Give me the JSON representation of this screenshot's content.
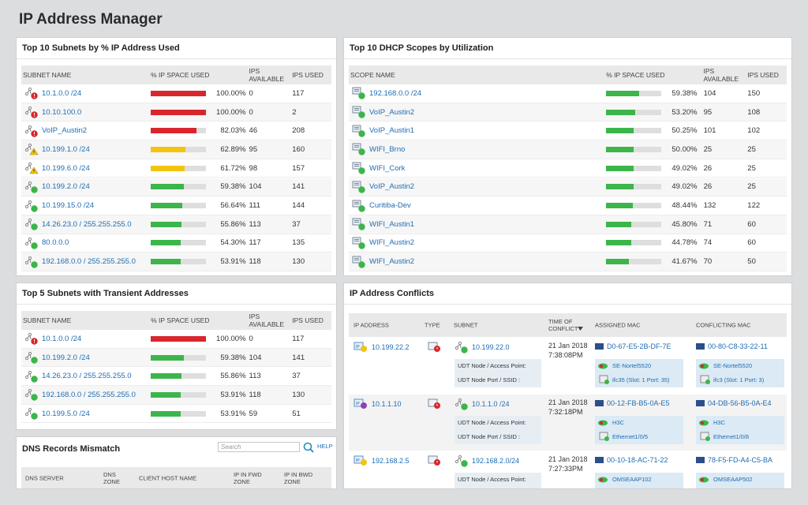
{
  "header": {
    "title": "IP Address Manager"
  },
  "status_colors": {
    "critical": "#d9262c",
    "warning": "#f2c40f",
    "up": "#3cb54a"
  },
  "bar_range": [
    0,
    100
  ],
  "subnets": {
    "title": "Top 10 Subnets by % IP Address Used",
    "columns": [
      "SUBNET NAME",
      "% IP SPACE USED",
      "IPS AVAILABLE",
      "IPS USED"
    ],
    "rows": [
      {
        "name": "10.1.0.0 /24",
        "status": "critical",
        "used_pct": {
          "value": 100,
          "label": "100.00%"
        },
        "available": 0,
        "used": 117
      },
      {
        "name": "10.10.100.0",
        "status": "critical",
        "used_pct": {
          "value": 100,
          "label": "100.00%"
        },
        "available": 0,
        "used": 2
      },
      {
        "name": "VoIP_Austin2",
        "status": "critical",
        "used_pct": {
          "value": 82.03,
          "label": "82.03%"
        },
        "available": 46,
        "used": 208
      },
      {
        "name": "10.199.1.0 /24",
        "status": "warning",
        "used_pct": {
          "value": 62.89,
          "label": "62.89%"
        },
        "available": 95,
        "used": 160
      },
      {
        "name": "10.199.6.0 /24",
        "status": "warning",
        "used_pct": {
          "value": 61.72,
          "label": "61.72%"
        },
        "available": 98,
        "used": 157
      },
      {
        "name": "10.199.2.0 /24",
        "status": "up",
        "used_pct": {
          "value": 59.38,
          "label": "59.38%"
        },
        "available": 104,
        "used": 141
      },
      {
        "name": "10.199.15.0 /24",
        "status": "up",
        "used_pct": {
          "value": 56.64,
          "label": "56.64%"
        },
        "available": 111,
        "used": 144
      },
      {
        "name": "14.26.23.0 / 255.255.255.0",
        "status": "up",
        "used_pct": {
          "value": 55.86,
          "label": "55.86%"
        },
        "available": 113,
        "used": 37
      },
      {
        "name": "80.0.0.0",
        "status": "up",
        "used_pct": {
          "value": 54.3,
          "label": "54.30%"
        },
        "available": 117,
        "used": 135
      },
      {
        "name": "192.168.0.0 / 255.255.255.0",
        "status": "up",
        "used_pct": {
          "value": 53.91,
          "label": "53.91%"
        },
        "available": 118,
        "used": 130
      }
    ]
  },
  "dhcp": {
    "title": "Top 10 DHCP Scopes by Utilization",
    "columns": [
      "SCOPE NAME",
      "% IP SPACE USED",
      "IPS AVAILABLE",
      "IPS USED"
    ],
    "rows": [
      {
        "name": "192.168.0.0 /24",
        "status": "up",
        "used_pct": {
          "value": 59.38,
          "label": "59.38%"
        },
        "available": 104,
        "used": 150
      },
      {
        "name": "VoIP_Austin2",
        "status": "up",
        "used_pct": {
          "value": 53.2,
          "label": "53.20%"
        },
        "available": 95,
        "used": 108
      },
      {
        "name": "VoIP_Austin1",
        "status": "up",
        "used_pct": {
          "value": 50.25,
          "label": "50.25%"
        },
        "available": 101,
        "used": 102
      },
      {
        "name": "WIFI_Brno",
        "status": "up",
        "used_pct": {
          "value": 50,
          "label": "50.00%"
        },
        "available": 25,
        "used": 25
      },
      {
        "name": "WIFI_Cork",
        "status": "up",
        "used_pct": {
          "value": 49.02,
          "label": "49.02%"
        },
        "available": 26,
        "used": 25
      },
      {
        "name": "VoIP_Austin2",
        "status": "up",
        "used_pct": {
          "value": 49.02,
          "label": "49.02%"
        },
        "available": 26,
        "used": 25
      },
      {
        "name": "Curitiba-Dev",
        "status": "up",
        "used_pct": {
          "value": 48.44,
          "label": "48.44%"
        },
        "available": 132,
        "used": 122
      },
      {
        "name": "WIFI_Austin1",
        "status": "up",
        "used_pct": {
          "value": 45.8,
          "label": "45.80%"
        },
        "available": 71,
        "used": 60
      },
      {
        "name": "WIFI_Austin2",
        "status": "up",
        "used_pct": {
          "value": 44.78,
          "label": "44.78%"
        },
        "available": 74,
        "used": 60
      },
      {
        "name": "WIFI_Austin2",
        "status": "up",
        "used_pct": {
          "value": 41.67,
          "label": "41.67%"
        },
        "available": 70,
        "used": 50
      }
    ]
  },
  "transient": {
    "title": "Top 5 Subnets with Transient Addresses",
    "columns": [
      "SUBNET NAME",
      "% IP SPACE USED",
      "IPS AVAILABLE",
      "IPS USED"
    ],
    "rows": [
      {
        "name": "10.1.0.0 /24",
        "status": "critical",
        "used_pct": {
          "value": 100,
          "label": "100.00%"
        },
        "available": 0,
        "used": 117
      },
      {
        "name": "10.199.2.0 /24",
        "status": "up",
        "used_pct": {
          "value": 59.38,
          "label": "59.38%"
        },
        "available": 104,
        "used": 141
      },
      {
        "name": "14.26.23.0 / 255.255.255.0",
        "status": "up",
        "used_pct": {
          "value": 55.86,
          "label": "55.86%"
        },
        "available": 113,
        "used": 37
      },
      {
        "name": "192.168.0.0 / 255.255.255.0",
        "status": "up",
        "used_pct": {
          "value": 53.91,
          "label": "53.91%"
        },
        "available": 118,
        "used": 130
      },
      {
        "name": "10.199.5.0 /24",
        "status": "up",
        "used_pct": {
          "value": 53.91,
          "label": "53.91%"
        },
        "available": 59,
        "used": 51
      }
    ]
  },
  "dns": {
    "title": "DNS Records Mismatch",
    "search_placeholder": "Search",
    "help": "HELP",
    "columns": [
      "DNS SERVER",
      "DNS ZONE",
      "CLIENT HOST NAME",
      "IP IN FWD ZONE",
      "IP IN BWD ZONE"
    ]
  },
  "conflicts": {
    "title": "IP Address Conflicts",
    "columns": [
      "IP ADDRESS",
      "TYPE",
      "SUBNET",
      "TIME OF CONFLICT",
      "ASSIGNED MAC",
      "CONFLICTING MAC"
    ],
    "udt_labels": [
      "UDT Node / Access Point:",
      "UDT Node Port / SSID :"
    ],
    "rows": [
      {
        "ip": "10.199.22.2",
        "subnet": "10.199.22.0",
        "date": "21 Jan 2018",
        "time": "7:38:08PM",
        "assigned": {
          "mac": "D0-67-E5-2B-DF-7E",
          "node": "SE-Nortel5520",
          "port": "ifc35 (Slot: 1 Port: 35)"
        },
        "conflicting": {
          "mac": "00-80-C8-33-22-11",
          "node": "SE-Nortel5520",
          "port": "ifc3 (Slot: 1 Port: 3)"
        }
      },
      {
        "ip": "10.1.1.10",
        "subnet": "10.1.1.0 /24",
        "date": "21 Jan 2018",
        "time": "7:32:18PM",
        "assigned": {
          "mac": "00-12-FB-B5-0A-E5",
          "node": "H3C",
          "port": "Ethernet1/0/5"
        },
        "conflicting": {
          "mac": "04-DB-56-B5-0A-E4",
          "node": "H3C",
          "port": "Ethernet1/0/8"
        }
      },
      {
        "ip": "192.168.2.5",
        "subnet": "192.168.2.0/24",
        "date": "21 Jan 2018",
        "time": "7:27:33PM",
        "assigned": {
          "mac": "00-10-18-AC-71-22",
          "node": "OMSEAAP102"
        },
        "conflicting": {
          "mac": "78-F5-FD-A4-C5-BA",
          "node": "OMSEAAP502"
        }
      }
    ]
  }
}
